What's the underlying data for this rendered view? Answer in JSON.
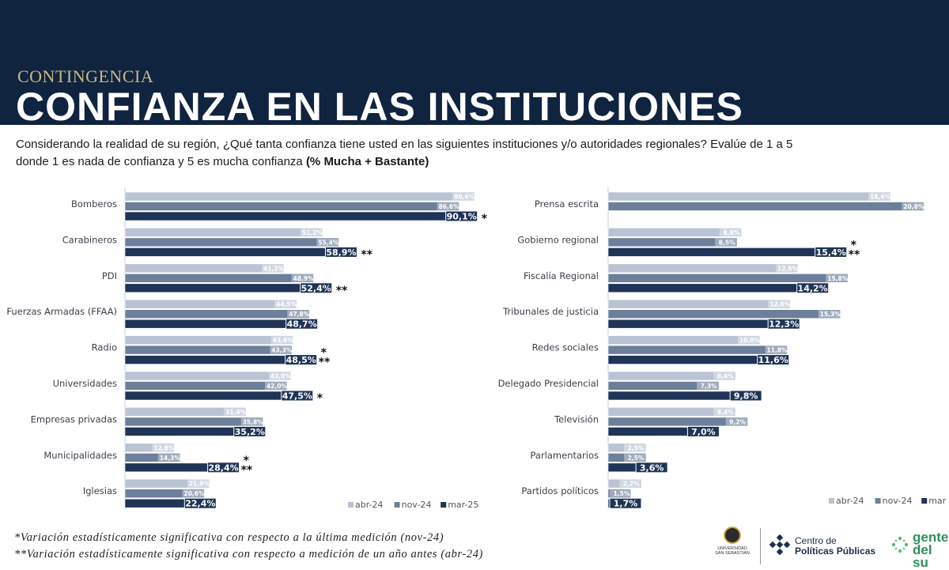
{
  "header": {
    "kicker": "CONTINGENCIA",
    "title": "CONFIANZA EN LAS INSTITUCIONES",
    "question_line1": "Considerando la realidad de su región, ¿Qué tanta confianza tiene usted en las siguientes instituciones y/o autoridades regionales? Evalúe de 1 a 5",
    "question_line2": "donde 1 es nada de confianza y 5 es mucha confianza",
    "question_emphasis": "(% Mucha + Bastante)"
  },
  "colors": {
    "header_bg": "#10233f",
    "abr24": "#b9c3d3",
    "nov24": "#6d7f9a",
    "mar25": "#1f3457",
    "label_bg_light": "#b9c3d3",
    "label_bg_mid": "#6d7f9a",
    "label_bg_dark": "#1f3457"
  },
  "chart_data": [
    {
      "type": "bar",
      "orientation": "horizontal",
      "categories": [
        "Bomberos",
        "Carabineros",
        "PDI",
        "Fuerzas Armadas (FFAA)",
        "Radio",
        "Universidades",
        "Empresas privadas",
        "Municipalidades",
        "Iglesias"
      ],
      "series": [
        {
          "name": "abr-24",
          "values": [
            90.6,
            51.2,
            41.2,
            44.5,
            43.6,
            43.0,
            31.4,
            12.8,
            21.9
          ],
          "labels": [
            "90,6%",
            "51,2%",
            "41,2%",
            "44,5%",
            "43,6%",
            "43,0%",
            "31,4%",
            "12,8%",
            "21,9%"
          ]
        },
        {
          "name": "nov-24",
          "values": [
            86.6,
            55.4,
            48.9,
            47.8,
            43.3,
            42.0,
            35.8,
            14.3,
            20.6
          ],
          "labels": [
            "86,6%",
            "55,4%",
            "48,9%",
            "47,8%",
            "43,3%",
            "42,0%",
            "35,8%",
            "14,3%",
            "20,6%"
          ]
        },
        {
          "name": "mar-25",
          "values": [
            90.1,
            58.9,
            52.4,
            48.7,
            48.5,
            47.5,
            35.2,
            28.4,
            22.4
          ],
          "labels": [
            "90,1%",
            "58,9%",
            "52,4%",
            "48,7%",
            "48,5%",
            "47,5%",
            "35,2%",
            "28,4%",
            "22,4%"
          ]
        }
      ],
      "markers": [
        {
          "category": "Bomberos",
          "single": true,
          "double": false
        },
        {
          "category": "Carabineros",
          "single": false,
          "double": true
        },
        {
          "category": "PDI",
          "single": false,
          "double": true
        },
        {
          "category": "Fuerzas Armadas (FFAA)",
          "single": false,
          "double": false
        },
        {
          "category": "Radio",
          "single": true,
          "double": true
        },
        {
          "category": "Universidades",
          "single": true,
          "double": false
        },
        {
          "category": "Empresas privadas",
          "single": false,
          "double": false
        },
        {
          "category": "Municipalidades",
          "single": true,
          "double": true
        },
        {
          "category": "Iglesias",
          "single": false,
          "double": false
        }
      ],
      "legend": [
        "abr-24",
        "nov-24",
        "mar-25"
      ],
      "legend_position": "bottom-right",
      "xlim": [
        0,
        100
      ],
      "grid": false
    },
    {
      "type": "bar",
      "orientation": "horizontal",
      "categories": [
        "Prensa escrita",
        "Gobierno regional",
        "Fiscalía Regional",
        "Tribunales de justicia",
        "Redes sociales",
        "Delegado Presidencial",
        "Televisión",
        "Parlamentarios",
        "Partidos políticos"
      ],
      "series": [
        {
          "name": "abr-24",
          "values": [
            18.6,
            8.8,
            12.5,
            12.0,
            10.0,
            8.4,
            8.4,
            2.5,
            2.2
          ],
          "labels": [
            "18,6%",
            "8,8%",
            "12,5%",
            "12,0%",
            "10,0%",
            "8,4%",
            "8,4%",
            "2,5%",
            "2,2%"
          ]
        },
        {
          "name": "nov-24",
          "values": [
            20.8,
            8.5,
            15.8,
            15.3,
            11.8,
            7.3,
            9.2,
            2.5,
            1.5
          ],
          "labels": [
            "20,8%",
            "8,5%",
            "15,8%",
            "15,3%",
            "11,8%",
            "7,3%",
            "9,2%",
            "2,5%",
            "1,5%"
          ]
        },
        {
          "name": "mar-25",
          "values": [
            null,
            15.4,
            14.2,
            12.3,
            11.6,
            9.8,
            7.0,
            3.6,
            1.7
          ],
          "labels": [
            "",
            "15,4%",
            "14,2%",
            "12,3%",
            "11,6%",
            "9,8%",
            "7,0%",
            "3,6%",
            "1,7%"
          ]
        }
      ],
      "markers": [
        {
          "category": "Prensa escrita",
          "single": false,
          "double": false
        },
        {
          "category": "Gobierno regional",
          "single": true,
          "double": true
        },
        {
          "category": "Fiscalía Regional",
          "single": false,
          "double": false
        },
        {
          "category": "Tribunales de justicia",
          "single": false,
          "double": false
        },
        {
          "category": "Redes sociales",
          "single": false,
          "double": false
        },
        {
          "category": "Delegado Presidencial",
          "single": false,
          "double": false
        },
        {
          "category": "Televisión",
          "single": false,
          "double": false
        },
        {
          "category": "Parlamentarios",
          "single": false,
          "double": false
        },
        {
          "category": "Partidos políticos",
          "single": false,
          "double": false
        }
      ],
      "legend": [
        "abr-24",
        "nov-24",
        "mar"
      ],
      "legend_position": "bottom-right",
      "xlim": [
        0,
        20.8
      ],
      "grid": false
    }
  ],
  "footnotes": {
    "note1": "*Variación estadísticamente significativa con respecto a la última medición (nov-24)",
    "note2": "**Variación estadísticamente significativa con respecto a medición de un año antes (abr-24)"
  },
  "logos": {
    "seal_text": "UNIVERSIDAD SAN SEBASTIÁN",
    "cpp_line1": "Centro de",
    "cpp_line2": "Políticas Públicas",
    "gente_line1": "gente",
    "gente_line2": "del su"
  }
}
